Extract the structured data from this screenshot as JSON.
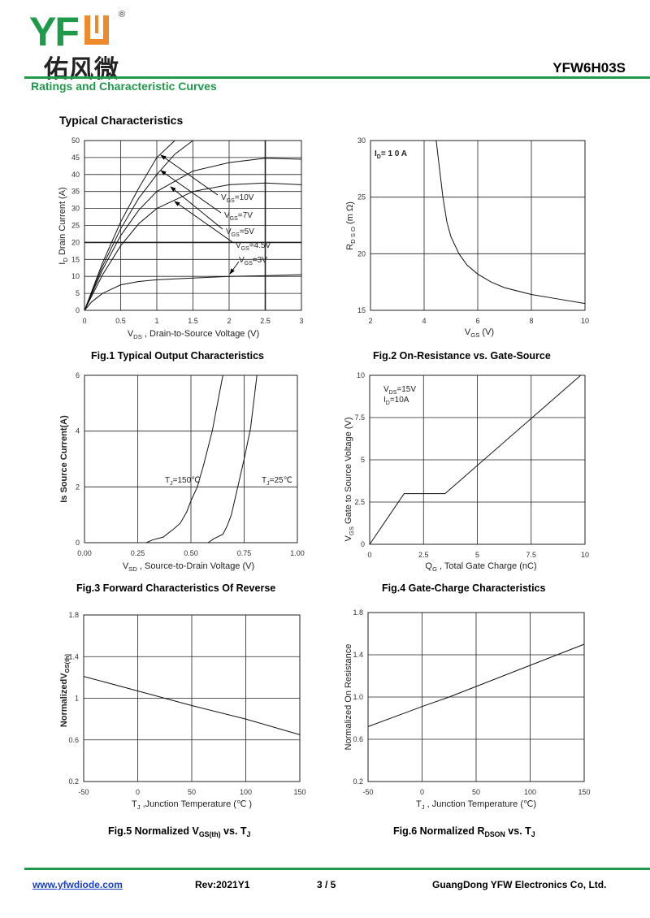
{
  "header": {
    "logo_text": "YFW",
    "logo_registered": "®",
    "logo_chinese": "佑风微",
    "part_number": "YFW6H03S",
    "section_title": "Ratings and Characteristic Curves",
    "subtitle": "Typical Characteristics"
  },
  "colors": {
    "brand_green": "#1f9a4a",
    "brand_orange": "#ee8a2c",
    "link": "#1a3fcc"
  },
  "footer": {
    "website": "www.yfwdiode.com",
    "revision": "Rev:2021Y1",
    "page": "3 / 5",
    "company": "GuangDong YFW Electronics Co, Ltd."
  },
  "chart_data": [
    {
      "type": "line",
      "title": [
        {
          "t": "Fig.1 Typical Output Characteristics"
        }
      ],
      "xlabel": [
        {
          "t": "V"
        },
        {
          "t": "DS",
          "sub": true
        },
        {
          "t": " ,  Drain-to-Source Voltage (V)"
        }
      ],
      "ylabel": [
        {
          "t": "I"
        },
        {
          "t": "D",
          "sub": true
        },
        {
          "t": "  Drain Current (A)"
        }
      ],
      "xlim": [
        0,
        3
      ],
      "ylim": [
        0,
        50
      ],
      "xticks": [
        "0",
        "0.5",
        "1",
        "1.5",
        "2",
        "2.5",
        "3"
      ],
      "yticks": [
        "0",
        "5",
        "10",
        "15",
        "20",
        "25",
        "30",
        "35",
        "40",
        "45",
        "50"
      ],
      "grid": true,
      "series": [
        {
          "name": "VGS=10V",
          "label": [
            {
              "t": "V"
            },
            {
              "t": "GS",
              "sub": true
            },
            {
              "t": "=10V"
            }
          ],
          "x": [
            0,
            0.25,
            0.5,
            0.75,
            1,
            1.25
          ],
          "y": [
            0,
            14,
            26,
            36,
            45,
            50
          ]
        },
        {
          "name": "VGS=7V",
          "label": [
            {
              "t": "V"
            },
            {
              "t": "GS",
              "sub": true
            },
            {
              "t": "=7V"
            }
          ],
          "x": [
            0,
            0.25,
            0.5,
            0.75,
            1,
            1.25,
            1.5
          ],
          "y": [
            0,
            13,
            24,
            33,
            40,
            46,
            50
          ]
        },
        {
          "name": "VGS=5V",
          "label": [
            {
              "t": "V"
            },
            {
              "t": "GS",
              "sub": true
            },
            {
              "t": "=5V"
            }
          ],
          "x": [
            0,
            0.25,
            0.5,
            0.75,
            1,
            1.5,
            2,
            2.5,
            3
          ],
          "y": [
            0,
            12,
            22,
            29.5,
            35,
            41,
            43.5,
            44.8,
            44.5
          ]
        },
        {
          "name": "VGS=4.5V",
          "label": [
            {
              "t": "V"
            },
            {
              "t": "GS",
              "sub": true
            },
            {
              "t": "=4.5V"
            }
          ],
          "x": [
            0,
            0.25,
            0.5,
            0.75,
            1,
            1.5,
            2,
            2.5,
            3
          ],
          "y": [
            0,
            10.5,
            19,
            25.5,
            30,
            35,
            37,
            37.5,
            37
          ]
        },
        {
          "name": "VGS=3V",
          "label": [
            {
              "t": "V"
            },
            {
              "t": "GS",
              "sub": true
            },
            {
              "t": "=3V"
            }
          ],
          "x": [
            0,
            0.1,
            0.25,
            0.5,
            0.75,
            1,
            1.5,
            2,
            2.5,
            3
          ],
          "y": [
            0,
            2.5,
            5,
            7.5,
            8.5,
            9,
            9.5,
            10,
            10.2,
            10.5
          ]
        }
      ]
    },
    {
      "type": "line",
      "title": [
        {
          "t": "Fig.2 On-Resistance vs. Gate-Source"
        }
      ],
      "xlabel": [
        {
          "t": "V"
        },
        {
          "t": "GS",
          "sub": true
        },
        {
          "t": " (V)"
        }
      ],
      "ylabel": [
        {
          "t": "R"
        },
        {
          "t": "D S O",
          "sub": true
        },
        {
          "t": " (m Ω)"
        }
      ],
      "xlim": [
        2,
        10
      ],
      "ylim": [
        15,
        30
      ],
      "xticks": [
        "2",
        "4",
        "6",
        "8",
        "10"
      ],
      "yticks": [
        "15",
        "20",
        "25",
        "30"
      ],
      "grid": true,
      "annotations": [
        [
          {
            "t": "I"
          },
          {
            "t": "D",
            "sub": true
          },
          {
            "t": "= 1 0 A"
          }
        ]
      ],
      "series": [
        {
          "name": "ID=10A",
          "x": [
            4.45,
            4.6,
            4.7,
            4.85,
            5,
            5.3,
            5.6,
            6,
            6.5,
            7,
            8,
            9,
            10
          ],
          "y": [
            30,
            27,
            25,
            22.8,
            21.5,
            20,
            19,
            18.2,
            17.5,
            17,
            16.4,
            16,
            15.6
          ]
        }
      ]
    },
    {
      "type": "line",
      "title": [
        {
          "t": "Fig.3 Forward Characteristics Of Reverse"
        }
      ],
      "xlabel": [
        {
          "t": "V"
        },
        {
          "t": "SD",
          "sub": true
        },
        {
          "t": " , Source-to-Drain Voltage (V)"
        }
      ],
      "ylabel": [
        {
          "t": "Is Source Current(A)"
        }
      ],
      "xlim": [
        0,
        1
      ],
      "ylim": [
        0,
        6
      ],
      "xticks": [
        "0.00",
        "0.25",
        "0.50",
        "0.75",
        "1.00"
      ],
      "yticks": [
        "0",
        "2",
        "4",
        "6"
      ],
      "grid": true,
      "series": [
        {
          "name": "TJ=150℃",
          "label": [
            {
              "t": "T"
            },
            {
              "t": "J",
              "sub": true
            },
            {
              "t": "=150℃"
            }
          ],
          "x": [
            0.29,
            0.32,
            0.37,
            0.42,
            0.45,
            0.48,
            0.5,
            0.53,
            0.56,
            0.6,
            0.65
          ],
          "y": [
            0,
            0.1,
            0.2,
            0.5,
            0.7,
            1.1,
            1.5,
            2,
            2.8,
            4,
            6
          ]
        },
        {
          "name": "TJ=25℃",
          "label": [
            {
              "t": "T"
            },
            {
              "t": "J",
              "sub": true
            },
            {
              "t": "=25℃"
            }
          ],
          "x": [
            0.58,
            0.61,
            0.65,
            0.67,
            0.69,
            0.72,
            0.75,
            0.78,
            0.81
          ],
          "y": [
            0,
            0.15,
            0.3,
            0.6,
            1,
            2,
            3,
            4.1,
            6
          ]
        }
      ]
    },
    {
      "type": "line",
      "title": [
        {
          "t": "Fig.4 Gate-Charge Characteristics"
        }
      ],
      "xlabel": [
        {
          "t": "Q"
        },
        {
          "t": "G",
          "sub": true
        },
        {
          "t": " ,  Total Gate Charge (nC)"
        }
      ],
      "ylabel": [
        {
          "t": "V"
        },
        {
          "t": "GS",
          "sub": true
        },
        {
          "t": "    Gate to Source Voltage (V)"
        }
      ],
      "xlim": [
        0,
        10
      ],
      "ylim": [
        0,
        10
      ],
      "xticks": [
        "0",
        "2.5",
        "5",
        "7.5",
        "10"
      ],
      "yticks": [
        "0",
        "2.5",
        "5",
        "7.5",
        "10"
      ],
      "grid": true,
      "annotations": [
        [
          {
            "t": "V"
          },
          {
            "t": "DS",
            "sub": true
          },
          {
            "t": "=15V"
          }
        ],
        [
          {
            "t": "I"
          },
          {
            "t": "D",
            "sub": true
          },
          {
            "t": "=10A"
          }
        ]
      ],
      "series": [
        {
          "name": "VDS=15V, ID=10A",
          "x": [
            0,
            1.6,
            3.5,
            9.8
          ],
          "y": [
            0,
            3,
            3,
            10
          ]
        }
      ]
    },
    {
      "type": "line",
      "title": [
        {
          "t": "Fig.5 Normalized V"
        },
        {
          "t": "GS(th)",
          "sub": true
        },
        {
          "t": " vs. T"
        },
        {
          "t": "J",
          "sub": true
        }
      ],
      "xlabel": [
        {
          "t": "T"
        },
        {
          "t": "J",
          "sub": true
        },
        {
          "t": " ,Junction Temperature (℃ )"
        }
      ],
      "ylabel": [
        {
          "t": "NormalizedV"
        },
        {
          "t": "GS(th)",
          "sub": true
        }
      ],
      "xlim": [
        -50,
        150
      ],
      "ylim": [
        0.2,
        1.8
      ],
      "xticks": [
        "-50",
        "0",
        "50",
        "100",
        "150"
      ],
      "yticks": [
        "0.2",
        "0.6",
        "1",
        "1.4",
        "1.8"
      ],
      "grid": true,
      "series": [
        {
          "name": "Normalized VGS(th)",
          "x": [
            -50,
            0,
            25,
            50,
            100,
            150
          ],
          "y": [
            1.21,
            1.07,
            1.0,
            0.93,
            0.8,
            0.65
          ]
        }
      ]
    },
    {
      "type": "line",
      "title": [
        {
          "t": "Fig.6 Normalized R"
        },
        {
          "t": "DSON",
          "sub": true
        },
        {
          "t": " vs. T"
        },
        {
          "t": "J",
          "sub": true
        }
      ],
      "xlabel": [
        {
          "t": "T"
        },
        {
          "t": "J",
          "sub": true
        },
        {
          "t": " , Junction Temperature (℃)"
        }
      ],
      "ylabel": [
        {
          "t": "Normalized On Resistance"
        }
      ],
      "xlim": [
        -50,
        150
      ],
      "ylim": [
        0.2,
        1.8
      ],
      "xticks": [
        "-50",
        "0",
        "50",
        "100",
        "150"
      ],
      "yticks": [
        "0.2",
        "0.6",
        "1.0",
        "1.4",
        "1.8"
      ],
      "grid": true,
      "series": [
        {
          "name": "Normalized RDSON",
          "x": [
            -50,
            0,
            25,
            50,
            100,
            125,
            150
          ],
          "y": [
            0.72,
            0.91,
            1.0,
            1.1,
            1.3,
            1.4,
            1.5
          ]
        }
      ]
    }
  ]
}
